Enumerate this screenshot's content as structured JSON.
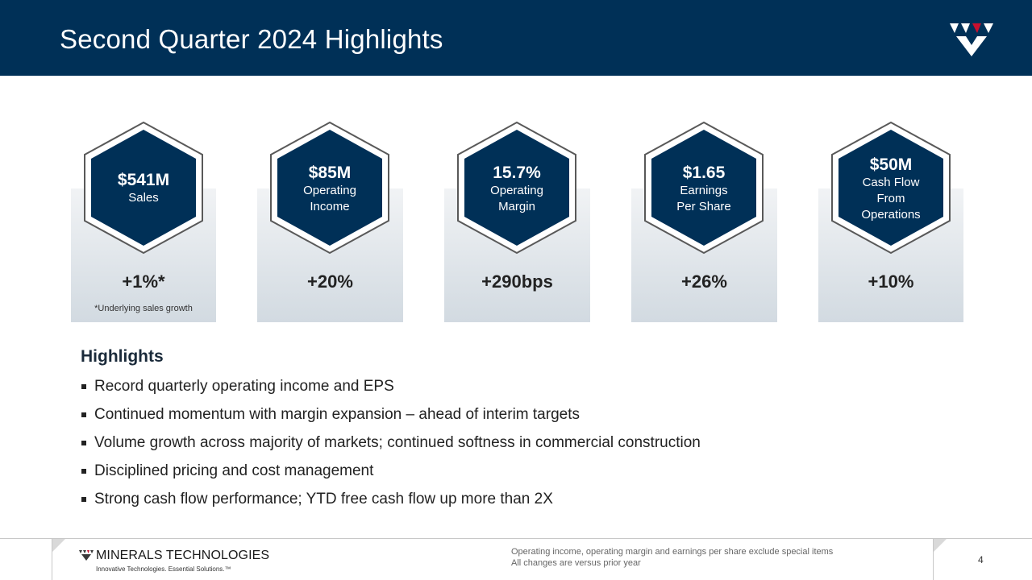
{
  "header": {
    "title": "Second Quarter 2024 Highlights"
  },
  "colors": {
    "navy": "#003057",
    "accent_red": "#c8102e"
  },
  "metrics": [
    {
      "value": "$541M",
      "label_lines": [
        "Sales"
      ],
      "change": "+1%*"
    },
    {
      "value": "$85M",
      "label_lines": [
        "Operating",
        "Income"
      ],
      "change": "+20%"
    },
    {
      "value": "15.7%",
      "label_lines": [
        "Operating",
        "Margin"
      ],
      "change": "+290bps"
    },
    {
      "value": "$1.65",
      "label_lines": [
        "Earnings",
        "Per Share"
      ],
      "change": "+26%"
    },
    {
      "value": "$50M",
      "label_lines": [
        "Cash Flow",
        "From",
        "Operations"
      ],
      "change": "+10%"
    }
  ],
  "metric_footnote": "*Underlying sales growth",
  "highlights": {
    "title": "Highlights",
    "items": [
      "Record quarterly operating income and EPS",
      "Continued momentum  with margin expansion – ahead of interim targets",
      "Volume growth across majority of markets; continued softness in commercial construction",
      "Disciplined pricing and cost management",
      "Strong cash flow performance; YTD free cash flow up more than 2X"
    ]
  },
  "footer": {
    "brand_name": "MINERALS TECHNOLOGIES",
    "brand_tagline": "Innovative Technologies. Essential Solutions.™",
    "disclaimer_lines": [
      "Operating income, operating margin and earnings per share exclude special items",
      "All changes are versus prior year"
    ],
    "page_number": "4"
  }
}
